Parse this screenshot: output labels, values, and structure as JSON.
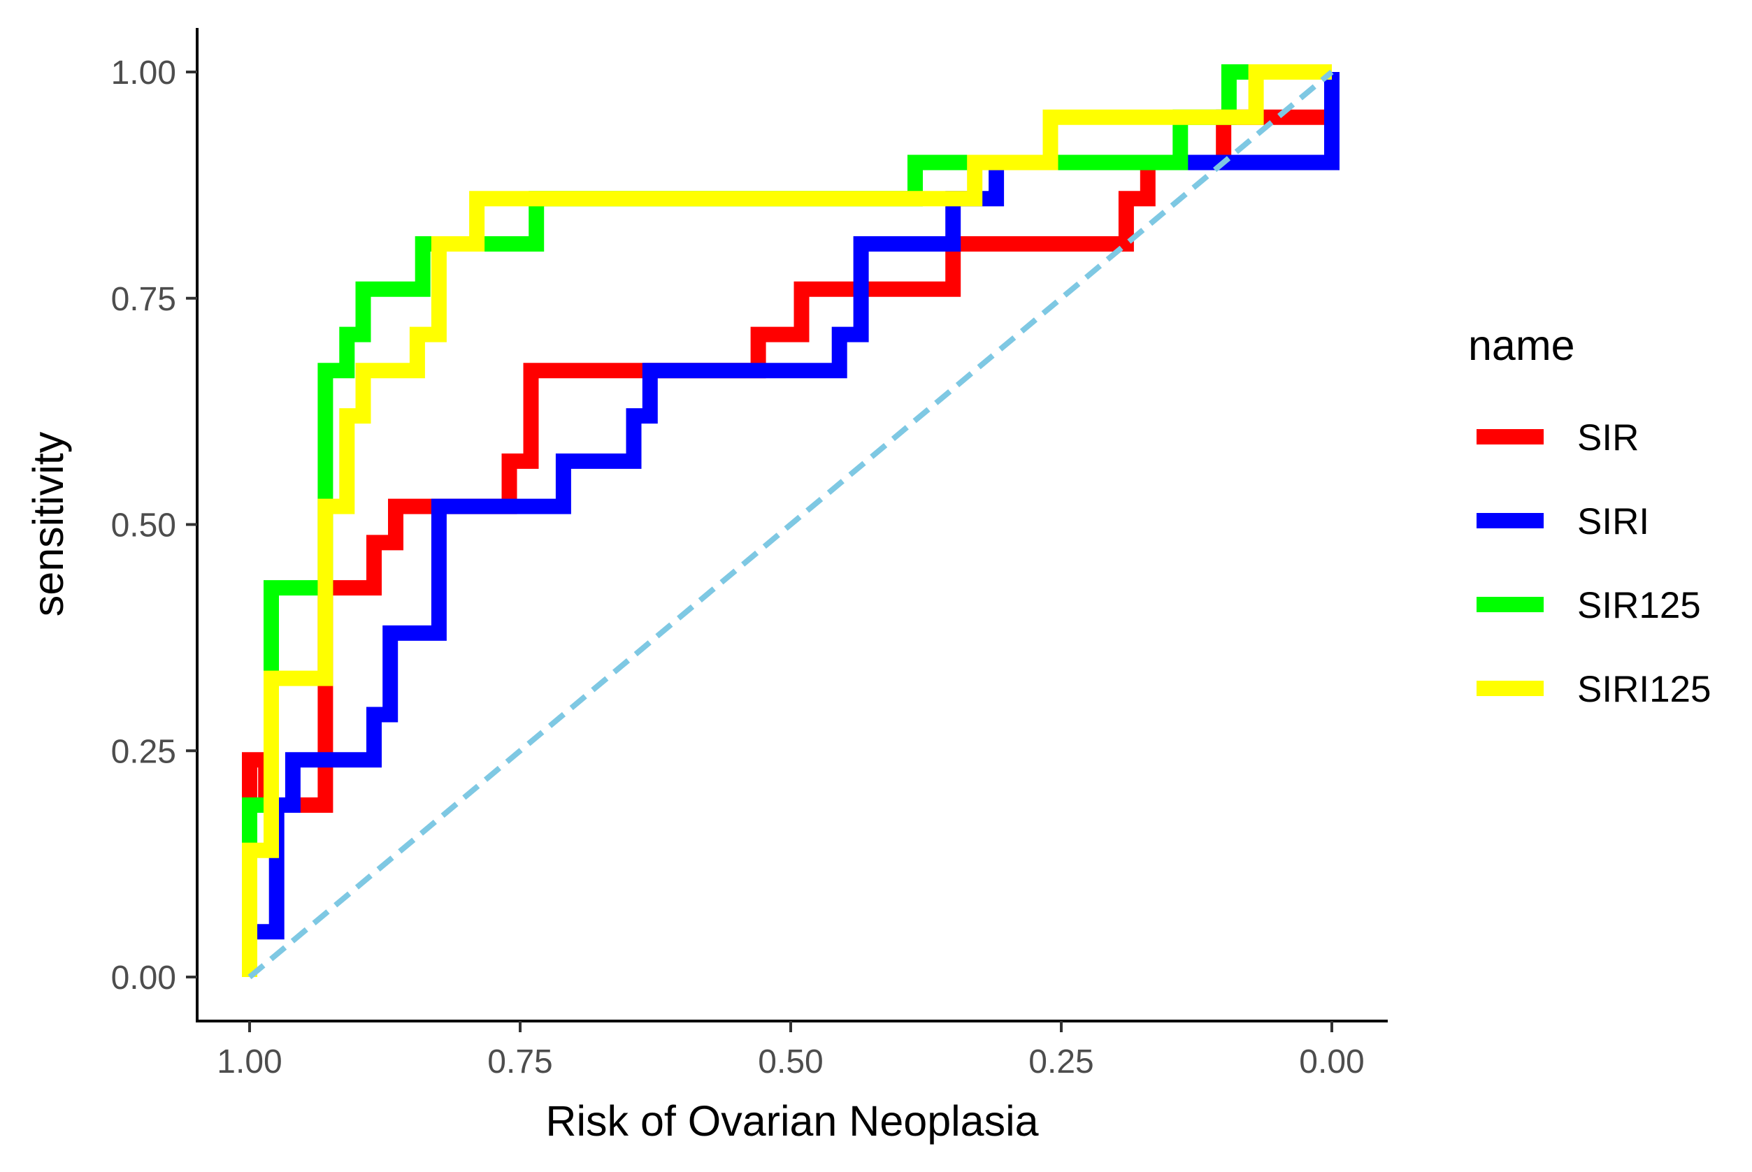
{
  "chart_data": {
    "type": "line",
    "subtype": "roc-step",
    "title": "",
    "xlabel": "Risk of Ovarian Neoplasia",
    "ylabel": "sensitivity",
    "xlim": [
      1.0,
      0.0
    ],
    "ylim": [
      0.0,
      1.0
    ],
    "x_reversed": true,
    "x_ticks": [
      1.0,
      0.75,
      0.5,
      0.25,
      0.0
    ],
    "x_tick_labels": [
      "1.00",
      "0.75",
      "0.50",
      "0.25",
      "0.00"
    ],
    "y_ticks": [
      0.0,
      0.25,
      0.5,
      0.75,
      1.0
    ],
    "y_tick_labels": [
      "0.00",
      "0.25",
      "0.50",
      "0.75",
      "1.00"
    ],
    "grid": false,
    "legend": {
      "title": "name",
      "position": "right",
      "entries": [
        "SIR",
        "SIRI",
        "SIR125",
        "SIRI125"
      ]
    },
    "reference_line": {
      "name": "chance-diagonal",
      "points": [
        [
          1.0,
          0.0
        ],
        [
          0.0,
          1.0
        ]
      ],
      "color": "#7ec8e3",
      "style": "dashed"
    },
    "series": [
      {
        "name": "SIR",
        "color": "#ff0000",
        "points": [
          [
            1.0,
            0.0
          ],
          [
            1.0,
            0.24
          ],
          [
            0.985,
            0.24
          ],
          [
            0.985,
            0.19
          ],
          [
            0.93,
            0.19
          ],
          [
            0.93,
            0.43
          ],
          [
            0.885,
            0.43
          ],
          [
            0.885,
            0.48
          ],
          [
            0.865,
            0.48
          ],
          [
            0.865,
            0.52
          ],
          [
            0.76,
            0.52
          ],
          [
            0.76,
            0.57
          ],
          [
            0.74,
            0.57
          ],
          [
            0.74,
            0.67
          ],
          [
            0.53,
            0.67
          ],
          [
            0.53,
            0.71
          ],
          [
            0.49,
            0.71
          ],
          [
            0.49,
            0.76
          ],
          [
            0.35,
            0.76
          ],
          [
            0.35,
            0.81
          ],
          [
            0.19,
            0.81
          ],
          [
            0.19,
            0.86
          ],
          [
            0.17,
            0.86
          ],
          [
            0.17,
            0.9
          ],
          [
            0.1,
            0.9
          ],
          [
            0.1,
            0.95
          ],
          [
            0.0,
            0.95
          ],
          [
            0.0,
            1.0
          ]
        ]
      },
      {
        "name": "SIRI",
        "color": "#0000ff",
        "points": [
          [
            1.0,
            0.0
          ],
          [
            1.0,
            0.05
          ],
          [
            0.975,
            0.05
          ],
          [
            0.975,
            0.19
          ],
          [
            0.96,
            0.19
          ],
          [
            0.96,
            0.24
          ],
          [
            0.885,
            0.24
          ],
          [
            0.885,
            0.29
          ],
          [
            0.87,
            0.29
          ],
          [
            0.87,
            0.38
          ],
          [
            0.825,
            0.38
          ],
          [
            0.825,
            0.52
          ],
          [
            0.71,
            0.52
          ],
          [
            0.71,
            0.57
          ],
          [
            0.645,
            0.57
          ],
          [
            0.645,
            0.62
          ],
          [
            0.63,
            0.62
          ],
          [
            0.63,
            0.67
          ],
          [
            0.455,
            0.67
          ],
          [
            0.455,
            0.71
          ],
          [
            0.435,
            0.71
          ],
          [
            0.435,
            0.81
          ],
          [
            0.35,
            0.81
          ],
          [
            0.35,
            0.86
          ],
          [
            0.31,
            0.86
          ],
          [
            0.31,
            0.9
          ],
          [
            0.0,
            0.9
          ],
          [
            0.0,
            1.0
          ]
        ]
      },
      {
        "name": "SIR125",
        "color": "#00ff00",
        "points": [
          [
            1.0,
            0.0
          ],
          [
            1.0,
            0.19
          ],
          [
            0.98,
            0.19
          ],
          [
            0.98,
            0.43
          ],
          [
            0.93,
            0.43
          ],
          [
            0.93,
            0.67
          ],
          [
            0.91,
            0.67
          ],
          [
            0.91,
            0.71
          ],
          [
            0.895,
            0.71
          ],
          [
            0.895,
            0.76
          ],
          [
            0.84,
            0.76
          ],
          [
            0.84,
            0.81
          ],
          [
            0.735,
            0.81
          ],
          [
            0.735,
            0.86
          ],
          [
            0.385,
            0.86
          ],
          [
            0.385,
            0.9
          ],
          [
            0.14,
            0.9
          ],
          [
            0.14,
            0.95
          ],
          [
            0.095,
            0.95
          ],
          [
            0.095,
            1.0
          ],
          [
            0.0,
            1.0
          ]
        ]
      },
      {
        "name": "SIRI125",
        "color": "#ffff00",
        "points": [
          [
            1.0,
            0.0
          ],
          [
            1.0,
            0.14
          ],
          [
            0.98,
            0.14
          ],
          [
            0.98,
            0.33
          ],
          [
            0.93,
            0.33
          ],
          [
            0.93,
            0.52
          ],
          [
            0.91,
            0.52
          ],
          [
            0.91,
            0.62
          ],
          [
            0.895,
            0.62
          ],
          [
            0.895,
            0.67
          ],
          [
            0.845,
            0.67
          ],
          [
            0.845,
            0.71
          ],
          [
            0.825,
            0.71
          ],
          [
            0.825,
            0.81
          ],
          [
            0.79,
            0.81
          ],
          [
            0.79,
            0.86
          ],
          [
            0.33,
            0.86
          ],
          [
            0.33,
            0.9
          ],
          [
            0.26,
            0.9
          ],
          [
            0.26,
            0.95
          ],
          [
            0.07,
            0.95
          ],
          [
            0.07,
            1.0
          ],
          [
            0.0,
            1.0
          ]
        ]
      }
    ]
  }
}
